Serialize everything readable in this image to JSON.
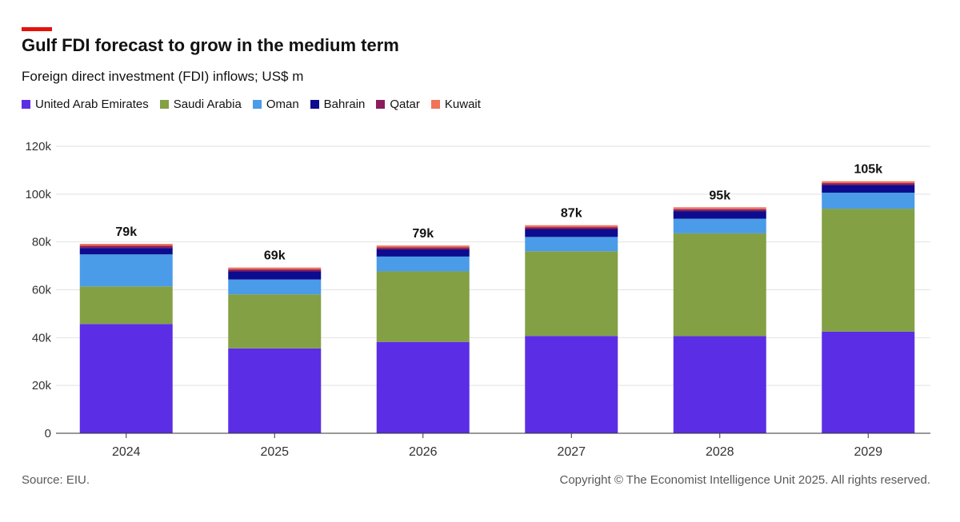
{
  "header": {
    "title": "Gulf FDI forecast to grow in the medium term",
    "subtitle": "Foreign direct investment (FDI) inflows; US$ m"
  },
  "footer": {
    "source": "Source: EIU.",
    "copyright": "Copyright © The Economist Intelligence Unit 2025. All rights reserved."
  },
  "colors": {
    "accent": "#e3120b"
  },
  "chart_data": {
    "type": "bar",
    "stacked": true,
    "categories": [
      "2024",
      "2025",
      "2026",
      "2027",
      "2028",
      "2029"
    ],
    "ylim": [
      0,
      120000
    ],
    "yticks": [
      0,
      20000,
      40000,
      60000,
      80000,
      100000,
      120000
    ],
    "ytick_labels": [
      "0",
      "20k",
      "40k",
      "60k",
      "80k",
      "100k",
      "120k"
    ],
    "grid": true,
    "legend_position": "top-left",
    "series": [
      {
        "name": "United Arab Emirates",
        "color": "#5b2ee5",
        "values": [
          45700,
          35500,
          38200,
          40700,
          40600,
          42500
        ]
      },
      {
        "name": "Saudi Arabia",
        "color": "#84a045",
        "values": [
          15700,
          22600,
          29500,
          35400,
          43000,
          51400
        ]
      },
      {
        "name": "Oman",
        "color": "#4a9be8",
        "values": [
          13400,
          6200,
          6200,
          6000,
          6100,
          6700
        ]
      },
      {
        "name": "Bahrain",
        "color": "#0d0c8e",
        "values": [
          2700,
          3400,
          3000,
          3300,
          3200,
          3200
        ]
      },
      {
        "name": "Qatar",
        "color": "#8b1d5c",
        "values": [
          900,
          800,
          800,
          800,
          800,
          800
        ]
      },
      {
        "name": "Kuwait",
        "color": "#f0735a",
        "values": [
          800,
          800,
          800,
          800,
          800,
          800
        ]
      }
    ],
    "total_labels": [
      "79k",
      "69k",
      "79k",
      "87k",
      "95k",
      "105k"
    ]
  }
}
